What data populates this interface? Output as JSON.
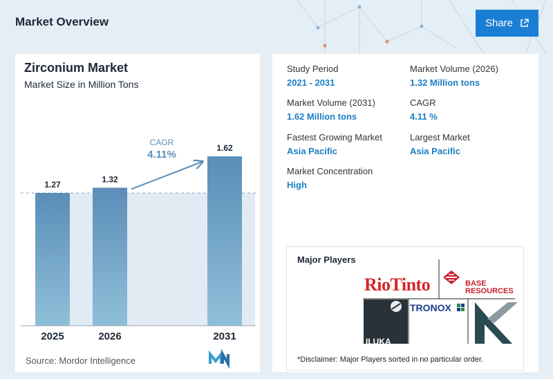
{
  "header": {
    "title": "Market Overview",
    "share_label": "Share"
  },
  "chart_data": {
    "type": "bar",
    "title": "Zirconium Market",
    "subtitle": "Market Size in Million Tons",
    "categories": [
      "2025",
      "2026",
      "2031"
    ],
    "values": [
      1.27,
      1.32,
      1.62
    ],
    "value_labels": [
      "1.27",
      "1.32",
      "1.62"
    ],
    "annotation": {
      "label": "CAGR",
      "value": "4.11%"
    },
    "ylim": [
      0,
      1.7
    ],
    "grid": false,
    "bar_color": "#5b8db8",
    "source": "Source: Mordor Intelligence"
  },
  "stats": {
    "study_period": {
      "label": "Study Period",
      "value": "2021 - 2031"
    },
    "volume_2026": {
      "label": "Market Volume (2026)",
      "value": "1.32 Million tons"
    },
    "volume_2031": {
      "label": "Market Volume (2031)",
      "value": "1.62 Million tons"
    },
    "cagr": {
      "label": "CAGR",
      "value": "4.11 %"
    },
    "fastest": {
      "label": "Fastest Growing Market",
      "value": "Asia Pacific"
    },
    "largest": {
      "label": "Largest Market",
      "value": "Asia Pacific"
    },
    "concentration": {
      "label": "Market Concentration",
      "value": "High"
    }
  },
  "players": {
    "title": "Major Players",
    "disclaimer": "*Disclaimer: Major Players sorted in no particular order.",
    "logos": {
      "riotinto": "RioTinto",
      "base_line1": "BASE",
      "base_line2": "RESOURCES",
      "tronox": "TRONOX",
      "iluka": "ILUKA"
    }
  }
}
